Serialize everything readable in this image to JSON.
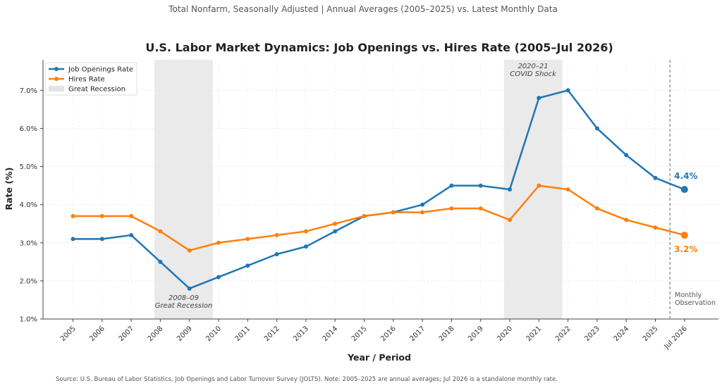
{
  "subtitle": "Total Nonfarm, Seasonally Adjusted  |  Annual Averages (2005–2025) vs. Latest Monthly Data",
  "source": "Source: U.S. Bureau of Labor Statistics, Job Openings and Labor Turnover Survey (JOLTS).  Note: 2005–2025 are annual averages; Jul 2026 is a standalone monthly rate.",
  "chart_data": {
    "type": "line",
    "title": "U.S. Labor Market Dynamics: Job Openings vs. Hires Rate (2005–Jul 2026)",
    "xlabel": "Year / Period",
    "ylabel": "Rate (%)",
    "categories": [
      "2005",
      "2006",
      "2007",
      "2008",
      "2009",
      "2010",
      "2011",
      "2012",
      "2013",
      "2014",
      "2015",
      "2016",
      "2017",
      "2018",
      "2019",
      "2020",
      "2021",
      "2022",
      "2023",
      "2024",
      "2025",
      "Jul 2026"
    ],
    "ylim": [
      1.0,
      7.8
    ],
    "yticks": [
      1.0,
      2.0,
      3.0,
      4.0,
      5.0,
      6.0,
      7.0
    ],
    "ytick_labels": [
      "1.0%",
      "2.0%",
      "3.0%",
      "4.0%",
      "5.0%",
      "6.0%",
      "7.0%"
    ],
    "grid": true,
    "legend_position": "top-left",
    "series": [
      {
        "name": "Job Openings Rate",
        "color": "#1f77b4",
        "values": [
          3.1,
          3.1,
          3.2,
          2.5,
          1.8,
          2.1,
          2.4,
          2.7,
          2.9,
          3.3,
          3.7,
          3.8,
          4.0,
          4.5,
          4.5,
          4.4,
          6.8,
          7.0,
          6.0,
          5.3,
          4.7,
          4.4
        ],
        "end_label": "4.4%"
      },
      {
        "name": "Hires Rate",
        "color": "#ff7f0e",
        "values": [
          3.7,
          3.7,
          3.7,
          3.3,
          2.8,
          3.0,
          3.1,
          3.2,
          3.3,
          3.5,
          3.7,
          3.8,
          3.8,
          3.9,
          3.9,
          3.6,
          4.5,
          4.4,
          3.9,
          3.6,
          3.4,
          3.2
        ],
        "end_label": "3.2%"
      }
    ],
    "shaded_regions": [
      {
        "name": "Great Recession",
        "start": 2007.8,
        "end": 2009.8,
        "color": "#e8e8e8",
        "label_line1": "2008–09",
        "label_line2": "Great Recession",
        "label_position": "bottom"
      },
      {
        "name": "COVID Shock",
        "start": 2019.8,
        "end": 2021.8,
        "color": "#e8e8e8",
        "label_line1": "2020–21",
        "label_line2": "COVID Shock",
        "label_position": "top"
      }
    ],
    "monthly_marker": {
      "label_line1": "Monthly",
      "label_line2": "Observation"
    },
    "legend": [
      "Job Openings Rate",
      "Hires Rate",
      "Great Recession"
    ]
  }
}
